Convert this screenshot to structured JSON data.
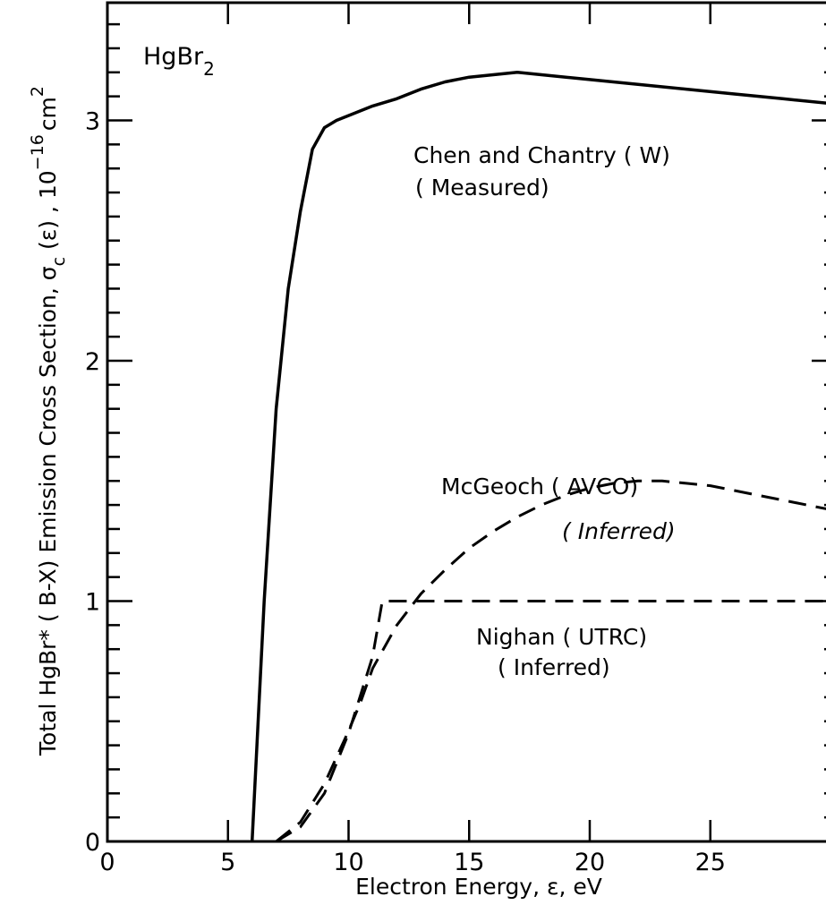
{
  "chart_data": {
    "type": "line",
    "title": "",
    "chart_label": {
      "text": "HgBr",
      "sub": "2"
    },
    "xlabel": "Electron Energy, ε, eV",
    "ylabel": {
      "main": "Total HgBr* ( B-X)  Emission Cross Section, σ",
      "sub": "c",
      "after": " (ε) , 10",
      "sup": "−16",
      "unit": "cm",
      "unit_sup": "2"
    },
    "xlim": [
      0,
      30
    ],
    "ylim": [
      0,
      3.5
    ],
    "xticks": [
      0,
      5,
      10,
      15,
      20,
      25
    ],
    "yticks": [
      0,
      1,
      2,
      3
    ],
    "grid": false,
    "series": [
      {
        "name": "Chen and Chantry ( W)",
        "label_lines": [
          "Chen and Chantry ( W)",
          "( Measured)"
        ],
        "style": "solid",
        "points": [
          [
            6.0,
            0.0
          ],
          [
            6.5,
            1.0
          ],
          [
            7.0,
            1.8
          ],
          [
            7.5,
            2.3
          ],
          [
            8.0,
            2.62
          ],
          [
            8.5,
            2.88
          ],
          [
            9.0,
            2.97
          ],
          [
            9.5,
            3.0
          ],
          [
            10.0,
            3.02
          ],
          [
            11.0,
            3.06
          ],
          [
            12.0,
            3.09
          ],
          [
            13.0,
            3.13
          ],
          [
            14.0,
            3.16
          ],
          [
            15.0,
            3.18
          ],
          [
            16.0,
            3.19
          ],
          [
            17.0,
            3.2
          ],
          [
            18.0,
            3.19
          ],
          [
            20.0,
            3.17
          ],
          [
            22.0,
            3.15
          ],
          [
            24.0,
            3.13
          ],
          [
            26.0,
            3.11
          ],
          [
            28.0,
            3.09
          ],
          [
            30.0,
            3.07
          ]
        ]
      },
      {
        "name": "McGeoch ( AVCO)",
        "label_lines": [
          "McGeoch ( AVCO)",
          "( Inferred)"
        ],
        "style": "dashed",
        "points": [
          [
            7.0,
            0.0
          ],
          [
            8.0,
            0.08
          ],
          [
            9.0,
            0.24
          ],
          [
            10.0,
            0.46
          ],
          [
            10.5,
            0.58
          ],
          [
            11.0,
            0.72
          ],
          [
            12.0,
            0.9
          ],
          [
            13.0,
            1.03
          ],
          [
            14.0,
            1.13
          ],
          [
            15.0,
            1.22
          ],
          [
            16.0,
            1.29
          ],
          [
            17.0,
            1.35
          ],
          [
            18.0,
            1.4
          ],
          [
            19.0,
            1.44
          ],
          [
            20.0,
            1.47
          ],
          [
            21.0,
            1.49
          ],
          [
            22.0,
            1.5
          ],
          [
            23.0,
            1.5
          ],
          [
            24.0,
            1.49
          ],
          [
            25.0,
            1.48
          ],
          [
            26.0,
            1.46
          ],
          [
            27.0,
            1.44
          ],
          [
            28.0,
            1.42
          ],
          [
            29.0,
            1.4
          ],
          [
            30.0,
            1.38
          ]
        ]
      },
      {
        "name": "Nighan ( UTRC)",
        "label_lines": [
          "Nighan ( UTRC)",
          "( Inferred)"
        ],
        "style": "dashed",
        "points": [
          [
            7.0,
            0.0
          ],
          [
            8.0,
            0.06
          ],
          [
            9.0,
            0.2
          ],
          [
            10.0,
            0.45
          ],
          [
            11.0,
            0.77
          ],
          [
            11.4,
            1.0
          ],
          [
            15.0,
            1.0
          ],
          [
            20.0,
            1.0
          ],
          [
            25.0,
            1.0
          ],
          [
            30.0,
            1.0
          ]
        ]
      }
    ]
  },
  "colors": {
    "ink": "#000000",
    "background": "#ffffff"
  }
}
